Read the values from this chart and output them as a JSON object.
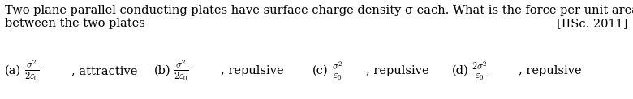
{
  "bg_color": "#ffffff",
  "text_color": "#000000",
  "line1": "Two plane parallel conducting plates have surface charge density σ each. What is the force per unit area",
  "line2": "between the two plates",
  "ref": "[IISc. 2011]",
  "option_a_label": "(a)",
  "option_a_frac_num": "$\\sigma^2$",
  "option_a_frac_den": "$2\\varepsilon_0$",
  "option_a_text": ", attractive",
  "option_b_label": "(b)",
  "option_b_frac_num": "$\\sigma^2$",
  "option_b_frac_den": "$2\\varepsilon_0$",
  "option_b_text": ", repulsive",
  "option_c_label": "(c)",
  "option_c_frac_num": "$\\sigma^2$",
  "option_c_frac_den": "$\\varepsilon_0$",
  "option_c_text": ", repulsive",
  "option_d_label": "(d)",
  "option_d_frac_num": "$2\\sigma^2$",
  "option_d_frac_den": "$\\varepsilon_0$",
  "option_d_text": ", repulsive",
  "fontsize_body": 10.5,
  "fontsize_options": 10.5,
  "fontsize_ref": 10.5,
  "fig_width": 7.8,
  "fig_height": 1.23,
  "dpi": 100
}
